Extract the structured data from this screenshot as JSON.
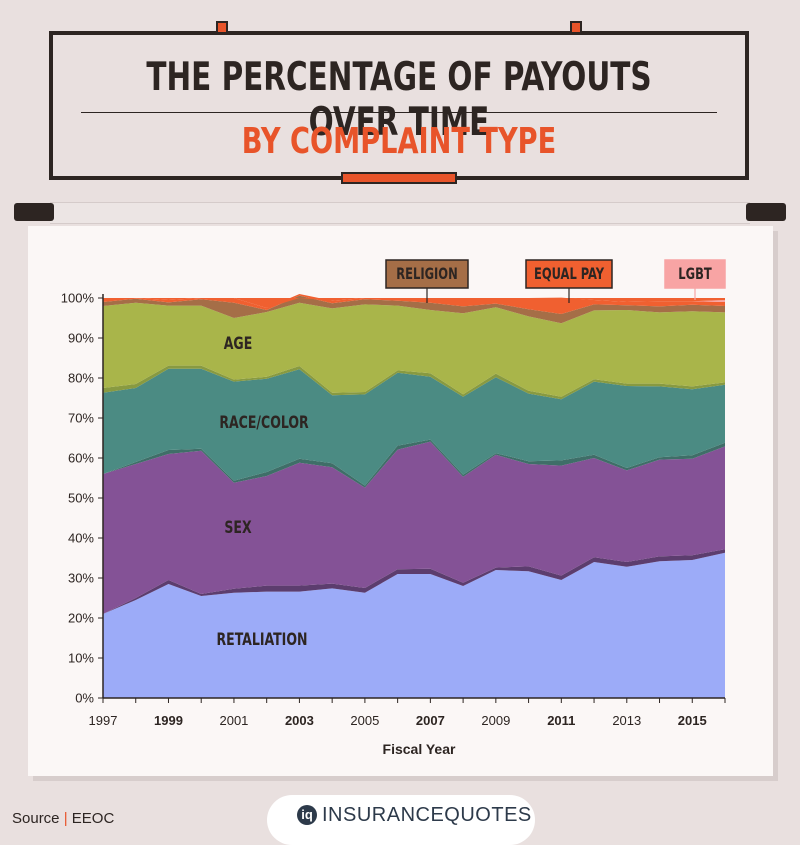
{
  "title": {
    "line1": "THE PERCENTAGE OF PAYOUTS OVER TIME",
    "line2": "BY COMPLAINT TYPE"
  },
  "source": {
    "label": "Source",
    "separator": "|",
    "value": "EEOC"
  },
  "brand": {
    "icon_letter": "iq",
    "name_part1": "INSURANCE",
    "name_part2": "QUOTES"
  },
  "chart_data": {
    "type": "area",
    "stacked": true,
    "xlabel": "Fiscal Year",
    "ylabel": "",
    "x": [
      1997,
      1998,
      1999,
      2000,
      2001,
      2002,
      2003,
      2004,
      2005,
      2006,
      2007,
      2008,
      2009,
      2010,
      2011,
      2012,
      2013,
      2014,
      2015,
      2016
    ],
    "x_tick_labels": [
      "1997",
      "1999",
      "2001",
      "2003",
      "2005",
      "2007",
      "2009",
      "2011",
      "2013",
      "2015"
    ],
    "bold_tick_labels": [
      "1999",
      "2003",
      "2007",
      "2011",
      "2015"
    ],
    "y_tick_labels": [
      "0%",
      "10%",
      "20%",
      "30%",
      "40%",
      "50%",
      "60%",
      "70%",
      "80%",
      "90%",
      "100%"
    ],
    "ylim": [
      0,
      100
    ],
    "grid": false,
    "series": [
      {
        "name": "RETALIATION",
        "color": "#9cabf8",
        "values": [
          21,
          24.5,
          28.5,
          25.5,
          26.3,
          26.6,
          26.6,
          27.4,
          26.3,
          31,
          31,
          28,
          32,
          31.7,
          29.5,
          34,
          32.8,
          34.2,
          34.5,
          36.3
        ]
      },
      {
        "name": "",
        "color": "#5c3d6e",
        "values": [
          0,
          0.5,
          1,
          0.5,
          1,
          1.5,
          1.5,
          1.2,
          1.2,
          1.2,
          1.3,
          0.8,
          0.6,
          1.2,
          1.1,
          1.2,
          1.2,
          1.2,
          1.2,
          0.9
        ]
      },
      {
        "name": "SEX",
        "color": "#845296",
        "values": [
          35,
          33.5,
          31.5,
          35.8,
          26.5,
          27.4,
          30.7,
          29.1,
          25.1,
          29.9,
          31.8,
          26.5,
          28.2,
          25.6,
          27.5,
          24.8,
          22.9,
          24.2,
          24.1,
          25.7
        ]
      },
      {
        "name": "",
        "color": "#3f6e68",
        "values": [
          0,
          0.5,
          1,
          0.5,
          0.5,
          1,
          1,
          1,
          0.5,
          1,
          0.5,
          0.5,
          0.4,
          0.7,
          1.3,
          0.8,
          0.6,
          0.6,
          0.9,
          0.9
        ]
      },
      {
        "name": "RACE/COLOR",
        "color": "#4b8b83",
        "values": [
          20.3,
          18.5,
          20.3,
          20,
          24.8,
          23.3,
          22.4,
          17,
          22.8,
          18.2,
          15.7,
          19.5,
          19,
          16.9,
          15.3,
          18.3,
          20.5,
          17.7,
          16.5,
          14.5
        ]
      },
      {
        "name": "",
        "color": "#889a41",
        "values": [
          1.2,
          1,
          0.8,
          0.8,
          0.5,
          0.5,
          0.8,
          0.6,
          0.6,
          0.6,
          0.9,
          0.6,
          0.9,
          0.7,
          0.6,
          0.6,
          0.6,
          0.7,
          0.7,
          0.6
        ]
      },
      {
        "name": "AGE",
        "color": "#a9b54a",
        "values": [
          20.5,
          20.3,
          15,
          15,
          15.4,
          16.2,
          15.8,
          21.1,
          21.9,
          16.2,
          15.8,
          20.3,
          16.6,
          18.6,
          18.4,
          17.2,
          18.4,
          17.8,
          18.8,
          17.5
        ]
      },
      {
        "name": "RELIGION",
        "color": "#a56e47",
        "values": [
          1,
          1,
          0.8,
          1.6,
          3.8,
          0.5,
          1.8,
          1.3,
          1.3,
          1.2,
          1.8,
          1.7,
          0.9,
          1.8,
          2.3,
          1.5,
          1.2,
          1.5,
          1.6,
          1.6
        ]
      },
      {
        "name": "EQUAL PAY",
        "color": "#f06030",
        "values": [
          1,
          0.2,
          0.6,
          0.3,
          1.2,
          0.5,
          0.4,
          0.6,
          0.3,
          0.7,
          1.2,
          2.1,
          1.4,
          2.8,
          4.1,
          1.1,
          0.8,
          1.3,
          0.9,
          1
        ],
        "band": [
          1,
          0.5,
          0.3,
          0.3,
          0.5,
          0.2,
          0.5,
          0.8,
          0.3,
          0.3,
          0.2,
          1.9,
          1,
          1.7,
          2.5,
          0.8,
          0.4,
          0.6,
          0.9,
          0.6
        ]
      },
      {
        "name": "LGBT",
        "color": "#f8a4a4",
        "values": [
          0,
          0,
          0,
          0,
          0,
          0,
          0,
          0,
          0,
          0,
          0,
          0,
          0,
          0,
          0,
          0,
          0,
          0,
          0,
          0.5
        ]
      }
    ],
    "series_labels_on_chart": [
      "AGE",
      "RACE/COLOR",
      "SEX",
      "RETALIATION"
    ],
    "callout_labels": [
      "RELIGION",
      "EQUAL PAY",
      "LGBT"
    ]
  }
}
